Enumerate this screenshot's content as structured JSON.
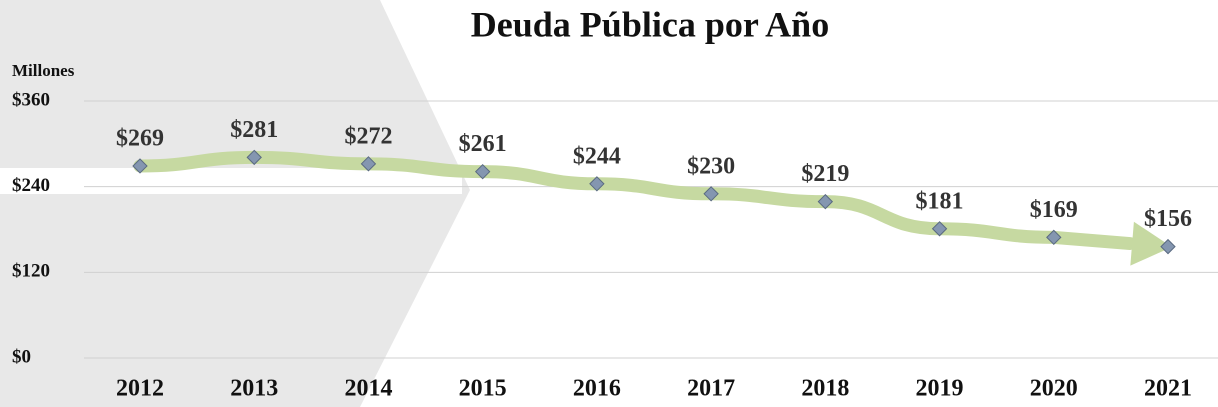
{
  "chart_data": {
    "type": "line",
    "title": "Deuda Pública por Año",
    "y_axis_label": "Millones",
    "categories": [
      "2012",
      "2013",
      "2014",
      "2015",
      "2016",
      "2017",
      "2018",
      "2019",
      "2020",
      "2021"
    ],
    "series": [
      {
        "name": "Deuda",
        "color": "#c6d9a1",
        "marker_color": "#8496b0",
        "values": [
          269,
          281,
          272,
          261,
          244,
          230,
          219,
          181,
          169,
          156
        ],
        "value_labels": [
          "$269",
          "$281",
          "$272",
          "$261",
          "$244",
          "$230",
          "$219",
          "$181",
          "$169",
          "$156"
        ]
      }
    ],
    "ylim": [
      0,
      360
    ],
    "yticks": [
      {
        "value": 0,
        "label": "$0"
      },
      {
        "value": 120,
        "label": "$120"
      },
      {
        "value": 240,
        "label": "$240"
      },
      {
        "value": 360,
        "label": "$360"
      }
    ],
    "grid": true
  }
}
